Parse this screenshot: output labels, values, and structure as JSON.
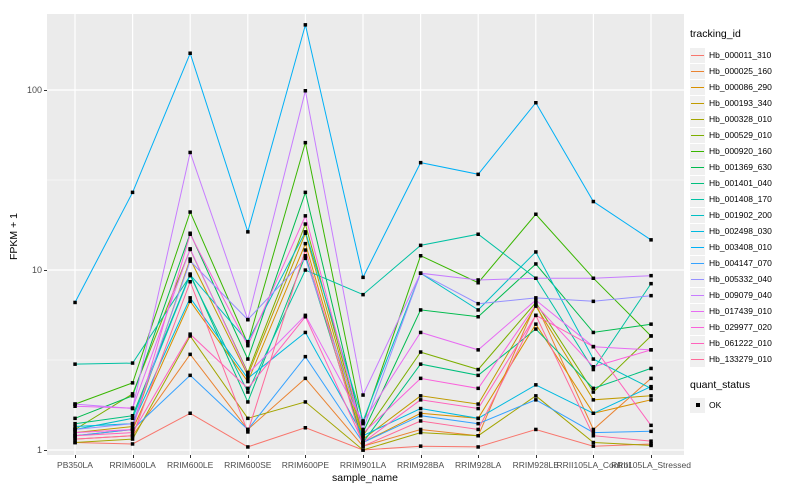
{
  "axes": {
    "y_title": "FPKM + 1",
    "x_title": "sample_name",
    "y_tick_labels": [
      "1",
      "10",
      "100"
    ]
  },
  "legend": {
    "tracking_title": "tracking_id",
    "quant_title": "quant_status",
    "quant_value": "OK"
  },
  "colors": {
    "panel_bg": "#EBEBEB",
    "grid_major": "#FFFFFF",
    "grid_minor": "#FFFFFF",
    "tick_text": "#4D4D4D",
    "point": "#000000",
    "legend_key_bg": "#F0F0F0"
  },
  "chart_data": {
    "type": "line",
    "title": "",
    "xlabel": "sample_name",
    "ylabel": "FPKM + 1",
    "y_scale": "log10",
    "y_major_ticks": [
      1,
      10,
      100
    ],
    "y_minor_ticks": [
      3.162,
      31.62
    ],
    "ylim_log": [
      -0.08,
      2.45
    ],
    "grid": true,
    "legend_position": "right",
    "point_shape": "filled-square",
    "categories": [
      "PB350LA",
      "RRIM600LA",
      "RRIM600LE",
      "RRIM600SE",
      "RRIM600PE",
      "RRIM901LA",
      "RRIM928BA",
      "RRIM928LA",
      "RRIM928LE",
      "RRII105LA_Control",
      "RRII105LA_Stressed"
    ],
    "series": [
      {
        "name": "Hb_000011_310",
        "color": "#F8766D",
        "values": [
          1.1,
          1.08,
          1.6,
          1.04,
          1.33,
          1.0,
          1.05,
          1.04,
          1.3,
          1.05,
          1.08
        ]
      },
      {
        "name": "Hb_000025_160",
        "color": "#EA8331",
        "values": [
          1.15,
          1.2,
          3.4,
          1.3,
          2.5,
          1.05,
          1.3,
          1.2,
          6.5,
          1.3,
          2.5
        ]
      },
      {
        "name": "Hb_000086_290",
        "color": "#D89000",
        "values": [
          1.2,
          1.3,
          6.7,
          2.4,
          14.0,
          1.1,
          1.6,
          1.5,
          5.0,
          1.6,
          1.9
        ]
      },
      {
        "name": "Hb_000193_340",
        "color": "#C09B00",
        "values": [
          1.25,
          1.35,
          11.5,
          2.6,
          16.0,
          1.15,
          2.0,
          1.8,
          6.3,
          1.9,
          2.0
        ]
      },
      {
        "name": "Hb_000328_010",
        "color": "#A3A500",
        "values": [
          1.1,
          1.15,
          4.3,
          1.5,
          1.85,
          1.0,
          1.25,
          1.2,
          2.0,
          1.1,
          1.06
        ]
      },
      {
        "name": "Hb_000529_010",
        "color": "#7CAE00",
        "values": [
          1.3,
          2.05,
          13.0,
          2.7,
          18.0,
          1.2,
          3.5,
          2.8,
          6.6,
          2.1,
          4.3
        ]
      },
      {
        "name": "Hb_000920_160",
        "color": "#39B600",
        "values": [
          1.8,
          2.36,
          21.0,
          3.9,
          51.0,
          1.4,
          12.0,
          8.5,
          20.4,
          9.0,
          4.3
        ]
      },
      {
        "name": "Hb_001369_630",
        "color": "#00BB4E",
        "values": [
          1.5,
          2.0,
          16.0,
          3.2,
          27.0,
          1.25,
          6.0,
          5.5,
          10.8,
          4.5,
          5.0
        ]
      },
      {
        "name": "Hb_001401_040",
        "color": "#00BF7D",
        "values": [
          1.4,
          1.55,
          9.5,
          1.85,
          12.0,
          1.1,
          3.0,
          2.6,
          4.7,
          2.2,
          2.84
        ]
      },
      {
        "name": "Hb_001408_170",
        "color": "#00C1A3",
        "values": [
          3.0,
          3.04,
          9.3,
          2.1,
          10.0,
          7.3,
          13.7,
          15.8,
          9.0,
          2.8,
          8.4
        ]
      },
      {
        "name": "Hb_001902_200",
        "color": "#00BFC4",
        "values": [
          1.3,
          1.5,
          9.4,
          4.0,
          16.3,
          1.45,
          9.6,
          6.0,
          12.6,
          3.2,
          2.2
        ]
      },
      {
        "name": "Hb_002498_030",
        "color": "#00BAE0",
        "values": [
          1.35,
          1.4,
          7.0,
          2.5,
          4.5,
          1.2,
          1.7,
          1.5,
          2.3,
          1.6,
          2.25
        ]
      },
      {
        "name": "Hb_003408_010",
        "color": "#00B0F6",
        "values": [
          6.6,
          27.0,
          160,
          16.3,
          230,
          9.1,
          39.5,
          34.0,
          85.0,
          24.0,
          14.7
        ]
      },
      {
        "name": "Hb_004147_070",
        "color": "#35A2FF",
        "values": [
          1.2,
          1.3,
          2.6,
          1.3,
          3.3,
          1.1,
          1.55,
          1.4,
          1.9,
          1.25,
          1.27
        ]
      },
      {
        "name": "Hb_005332_040",
        "color": "#9590FF",
        "values": [
          1.3,
          1.4,
          11.2,
          5.3,
          11.6,
          1.3,
          9.6,
          6.5,
          7.0,
          6.7,
          7.2
        ]
      },
      {
        "name": "Hb_009079_040",
        "color": "#C77CFF",
        "values": [
          1.8,
          1.7,
          45.0,
          5.3,
          99.0,
          2.02,
          9.6,
          8.8,
          9.0,
          9.0,
          9.3
        ]
      },
      {
        "name": "Hb_017439_010",
        "color": "#E76BF3",
        "values": [
          1.75,
          1.71,
          13.1,
          2.65,
          5.6,
          1.43,
          4.5,
          3.6,
          6.8,
          3.75,
          3.6
        ]
      },
      {
        "name": "Hb_029977_020",
        "color": "#FA62DB",
        "values": [
          1.25,
          1.3,
          15.8,
          3.8,
          20.0,
          1.24,
          2.5,
          2.2,
          6.4,
          2.9,
          3.6
        ]
      },
      {
        "name": "Hb_061222_010",
        "color": "#FF62BC",
        "values": [
          1.2,
          1.25,
          4.4,
          2.2,
          5.5,
          1.1,
          1.9,
          1.7,
          5.6,
          3.75,
          1.37
        ]
      },
      {
        "name": "Hb_133279_010",
        "color": "#FF6A9A",
        "values": [
          1.15,
          1.2,
          8.6,
          1.26,
          12.9,
          1.05,
          1.45,
          1.3,
          5.6,
          1.2,
          1.12
        ]
      }
    ]
  }
}
